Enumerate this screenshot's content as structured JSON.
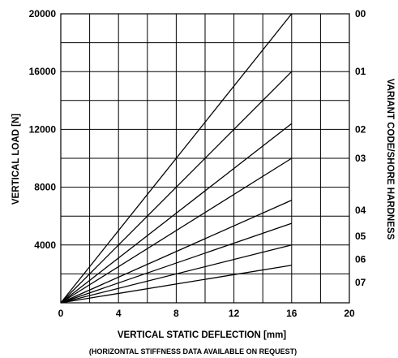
{
  "chart_data": {
    "type": "line",
    "xlabel": "VERTICAL STATIC DEFLECTION [mm]",
    "xnote": "(HORIZONTAL STIFFNESS DATA AVAILABLE ON REQUEST)",
    "ylabel": "VERTICAL LOAD [N]",
    "y2label": "VARIANT CODE/SHORE HARDNESS",
    "xlim": [
      0,
      20
    ],
    "ylim": [
      0,
      20000
    ],
    "x_ticks": [
      "0",
      "4",
      "8",
      "12",
      "16",
      "20"
    ],
    "y_ticks": [
      "4000",
      "8000",
      "12000",
      "16000",
      "20000"
    ],
    "grid": true,
    "series": [
      {
        "name": "00",
        "x": [
          0,
          16
        ],
        "y": [
          0,
          20000
        ]
      },
      {
        "name": "01",
        "x": [
          0,
          16
        ],
        "y": [
          0,
          16000
        ]
      },
      {
        "name": "02",
        "x": [
          0,
          16
        ],
        "y": [
          0,
          12400
        ]
      },
      {
        "name": "03",
        "x": [
          0,
          16
        ],
        "y": [
          0,
          10000
        ]
      },
      {
        "name": "04",
        "x": [
          0,
          16
        ],
        "y": [
          0,
          7100
        ]
      },
      {
        "name": "05",
        "x": [
          0,
          16
        ],
        "y": [
          0,
          5500
        ]
      },
      {
        "name": "06",
        "x": [
          0,
          16
        ],
        "y": [
          0,
          4000
        ]
      },
      {
        "name": "07",
        "x": [
          0,
          16
        ],
        "y": [
          0,
          2600
        ]
      }
    ],
    "right_labels": [
      {
        "text": "00",
        "y": 20000
      },
      {
        "text": "01",
        "y": 16000
      },
      {
        "text": "02",
        "y": 12000
      },
      {
        "text": "03",
        "y": 10000
      },
      {
        "text": "04",
        "y": 6400
      },
      {
        "text": "05",
        "y": 4600
      },
      {
        "text": "06",
        "y": 3000
      },
      {
        "text": "07",
        "y": 1400
      }
    ]
  }
}
